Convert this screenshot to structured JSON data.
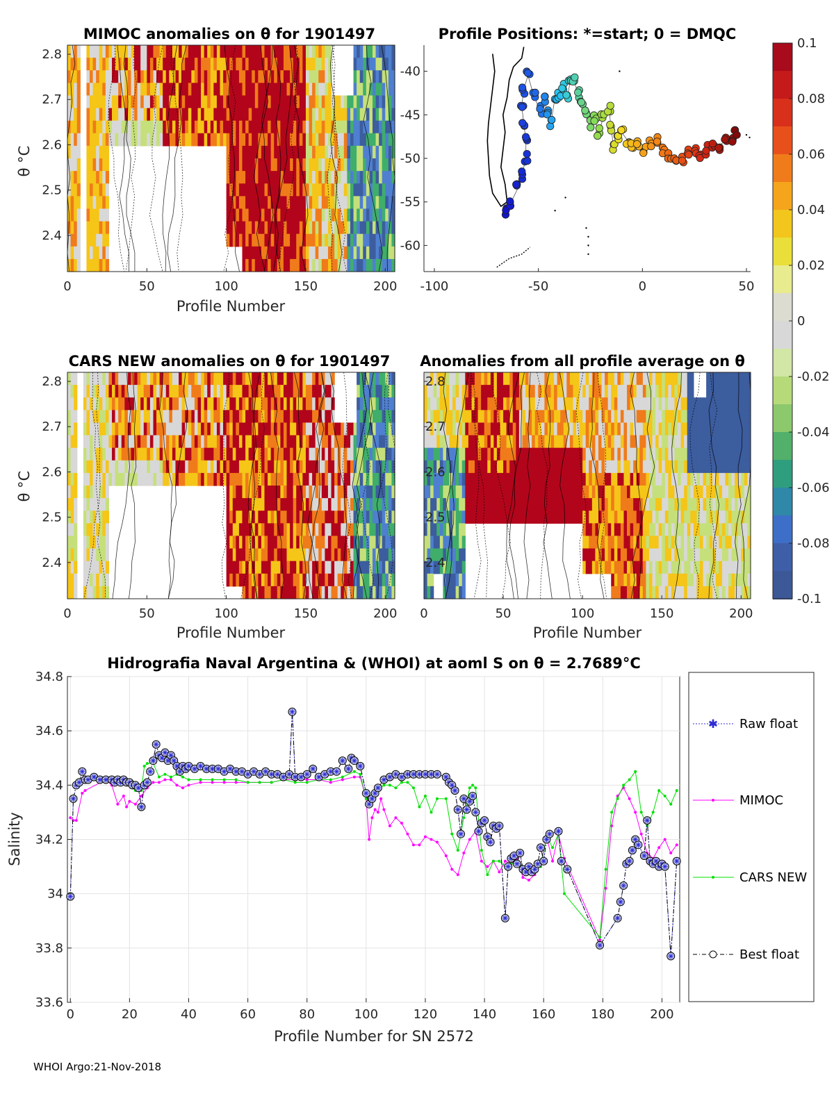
{
  "colors": {
    "red": "#b2051b",
    "orange": "#f07b1a",
    "yellow": "#f5c518",
    "grey": "#d8d8d8",
    "lightgreen": "#c5e07a",
    "green": "#3fae6b",
    "blue": "#3c5d9e",
    "midblue": "#4f7fd0"
  },
  "footer": "WHOI Argo:21-Nov-2018",
  "panels": {
    "mimoc": {
      "title": "MIMOC anomalies on θ  for 1901497",
      "xlabel": "Profile Number",
      "ylabel": "θ °C",
      "xticks": [
        "0",
        "50",
        "100",
        "150",
        "200"
      ],
      "yticks": [
        "2.4",
        "2.5",
        "2.6",
        "2.7",
        "2.8"
      ]
    },
    "positions": {
      "title": "Profile Positions: *=start; 0 = DMQC",
      "xticks": [
        "-100",
        "-50",
        "0",
        "50"
      ],
      "yticks": [
        "-40",
        "-45",
        "-50",
        "-55",
        "-60"
      ]
    },
    "cars": {
      "title": "CARS NEW anomalies on θ for 1901497",
      "xlabel": "Profile Number",
      "ylabel": "θ °C",
      "xticks": [
        "0",
        "50",
        "100",
        "150",
        "200"
      ],
      "yticks": [
        "2.4",
        "2.5",
        "2.6",
        "2.7",
        "2.8"
      ]
    },
    "allavg": {
      "title": "Anomalies from all profile average on θ",
      "xlabel": "Profile Number",
      "xticks": [
        "0",
        "50",
        "100",
        "150",
        "200"
      ],
      "yticks": [
        "2.4",
        "2.5",
        "2.6",
        "2.7",
        "2.8"
      ]
    }
  },
  "colorbar": {
    "ticks": [
      "0.1",
      "0.08",
      "0.06",
      "0.04",
      "0.02",
      "0",
      "-0.02",
      "-0.04",
      "-0.06",
      "-0.08",
      "-0.1"
    ]
  },
  "chart_data": [
    {
      "type": "heatmap",
      "title": "MIMOC anomalies on θ  for 1901497",
      "xlabel": "Profile Number",
      "ylabel": "θ °C",
      "xlim": [
        0,
        206
      ],
      "ylim": [
        2.32,
        2.82
      ],
      "x_segments": [
        [
          0,
          25,
          "yellow"
        ],
        [
          25,
          55,
          "orange"
        ],
        [
          55,
          100,
          "red"
        ],
        [
          100,
          140,
          "red"
        ],
        [
          140,
          160,
          "orange"
        ],
        [
          160,
          180,
          "lightgreen"
        ],
        [
          180,
          206,
          "blue"
        ]
      ],
      "empty_regions": [
        [
          25,
          100,
          2.32,
          2.6
        ],
        [
          8,
          12,
          2.32,
          2.82
        ],
        [
          168,
          180,
          2.72,
          2.82
        ]
      ]
    },
    {
      "type": "scatter",
      "title": "Profile Positions: *=start; 0 = DMQC",
      "xlim": [
        -105,
        52
      ],
      "ylim": [
        -63,
        -37
      ],
      "track": [
        [
          -66,
          -56.2
        ],
        [
          -63,
          -55
        ],
        [
          -60,
          -53.5
        ],
        [
          -58,
          -52
        ],
        [
          -56,
          -50
        ],
        [
          -56,
          -48
        ],
        [
          -57,
          -46
        ],
        [
          -58,
          -44
        ],
        [
          -57,
          -42
        ],
        [
          -55,
          -40.5
        ],
        [
          -52,
          -43
        ],
        [
          -49,
          -44.5
        ],
        [
          -47,
          -43
        ],
        [
          -46,
          -45
        ],
        [
          -44,
          -46
        ],
        [
          -42,
          -43
        ],
        [
          -40,
          -42.5
        ],
        [
          -38,
          -42
        ],
        [
          -36,
          -43
        ],
        [
          -35,
          -41.5
        ],
        [
          -33,
          -41
        ],
        [
          -31,
          -42.5
        ],
        [
          -29,
          -44
        ],
        [
          -27,
          -44.5
        ],
        [
          -25,
          -46
        ],
        [
          -23,
          -45.5
        ],
        [
          -21,
          -47
        ],
        [
          -19,
          -45.5
        ],
        [
          -16,
          -44.5
        ],
        [
          -15,
          -46.5
        ],
        [
          -14,
          -48.5
        ],
        [
          -12,
          -47.5
        ],
        [
          -10,
          -47
        ],
        [
          -7,
          -48
        ],
        [
          -5,
          -48.5
        ],
        [
          -2,
          -48.5
        ],
        [
          1,
          -49
        ],
        [
          4,
          -48.5
        ],
        [
          7,
          -48
        ],
        [
          10,
          -49
        ],
        [
          13,
          -50
        ],
        [
          16,
          -50.5
        ],
        [
          19,
          -50
        ],
        [
          22,
          -49.5
        ],
        [
          25,
          -49
        ],
        [
          28,
          -49.5
        ],
        [
          31,
          -49
        ],
        [
          34,
          -48.5
        ],
        [
          37,
          -48.5
        ],
        [
          40,
          -48
        ],
        [
          43,
          -47.5
        ],
        [
          45,
          -47
        ]
      ]
    },
    {
      "type": "heatmap",
      "title": "CARS NEW anomalies on θ for 1901497",
      "xlabel": "Profile Number",
      "ylabel": "θ °C",
      "xlim": [
        0,
        206
      ],
      "ylim": [
        2.32,
        2.82
      ]
    },
    {
      "type": "heatmap",
      "title": "Anomalies from all profile average on θ",
      "xlabel": "Profile Number",
      "xlim": [
        0,
        206
      ],
      "ylim": [
        2.32,
        2.82
      ]
    },
    {
      "type": "line",
      "title": "Hidrografia Naval Argentina & (WHOI) at aoml S on θ = 2.7689°C",
      "xlabel": "Profile Number for SN 2572",
      "ylabel": "Salinity",
      "xlim": [
        -1,
        206
      ],
      "ylim": [
        33.6,
        34.8
      ],
      "xticks": [
        0,
        20,
        40,
        60,
        80,
        100,
        120,
        140,
        160,
        180,
        200
      ],
      "yticks": [
        33.6,
        33.8,
        34,
        34.2,
        34.4,
        34.6,
        34.8
      ],
      "grid": true,
      "legend": [
        "Raw float",
        "MIMOC",
        "CARS NEW",
        "Best float"
      ],
      "series": [
        {
          "name": "Best float",
          "x": [
            0,
            1,
            2,
            3,
            4,
            5,
            6,
            8,
            10,
            12,
            14,
            15,
            16,
            17,
            18,
            19,
            20,
            21,
            22,
            23,
            24,
            25,
            26,
            27,
            28,
            29,
            30,
            31,
            32,
            33,
            34,
            35,
            36,
            37,
            38,
            39,
            40,
            42,
            44,
            46,
            48,
            50,
            52,
            54,
            56,
            58,
            60,
            62,
            64,
            66,
            68,
            70,
            72,
            74,
            75,
            76,
            78,
            80,
            82,
            84,
            86,
            88,
            90,
            92,
            94,
            95,
            96,
            98,
            100,
            101,
            102,
            103,
            104,
            106,
            108,
            110,
            112,
            114,
            116,
            118,
            120,
            122,
            124,
            127,
            128,
            129,
            130,
            131,
            132,
            133,
            134,
            135,
            136,
            137,
            138,
            139,
            140,
            141,
            142,
            143,
            144,
            145,
            147,
            148,
            149,
            150,
            151,
            152,
            153,
            154,
            155,
            156,
            157,
            158,
            159,
            160,
            161,
            162,
            165,
            166,
            168,
            179,
            185,
            186,
            187,
            188,
            189,
            190,
            191,
            192,
            194,
            195,
            196,
            197,
            198,
            199,
            200,
            201,
            203,
            205
          ],
          "values": [
            33.99,
            34.35,
            34.4,
            34.41,
            34.45,
            34.42,
            34.42,
            34.43,
            34.42,
            34.42,
            34.42,
            34.41,
            34.42,
            34.41,
            34.42,
            34.41,
            34.41,
            34.4,
            34.4,
            34.39,
            34.32,
            34.4,
            34.41,
            34.45,
            34.49,
            34.55,
            34.51,
            34.5,
            34.52,
            34.49,
            34.51,
            34.49,
            34.47,
            34.45,
            34.47,
            34.46,
            34.47,
            34.46,
            34.47,
            34.46,
            34.46,
            34.46,
            34.45,
            34.46,
            34.45,
            34.45,
            34.44,
            34.45,
            34.44,
            34.45,
            34.44,
            34.44,
            34.43,
            34.44,
            34.67,
            34.43,
            34.43,
            34.44,
            34.46,
            34.43,
            34.44,
            34.45,
            34.45,
            34.49,
            34.46,
            34.5,
            34.49,
            34.47,
            34.37,
            34.33,
            34.35,
            34.37,
            34.39,
            34.42,
            34.43,
            34.44,
            34.43,
            34.44,
            34.44,
            34.44,
            34.44,
            34.44,
            34.44,
            34.43,
            34.41,
            34.4,
            34.38,
            34.31,
            34.22,
            34.35,
            34.31,
            34.34,
            34.36,
            34.3,
            34.23,
            34.26,
            34.27,
            34.21,
            34.19,
            34.25,
            34.24,
            34.25,
            33.91,
            34.1,
            34.13,
            34.14,
            34.11,
            34.15,
            34.09,
            34.08,
            34.1,
            34.08,
            34.09,
            34.11,
            34.17,
            34.12,
            34.2,
            34.22,
            34.23,
            34.12,
            34.09,
            33.81,
            33.91,
            33.97,
            34.03,
            34.11,
            34.12,
            34.16,
            34.2,
            34.18,
            34.14,
            34.27,
            34.12,
            34.11,
            34.12,
            34.1,
            34.11,
            34.1,
            33.77,
            34.12
          ]
        },
        {
          "name": "MIMOC",
          "x": [
            0,
            1,
            2,
            4,
            5,
            12,
            14,
            16,
            18,
            19,
            20,
            22,
            24,
            26,
            28,
            30,
            32,
            34,
            36,
            38,
            40,
            44,
            48,
            52,
            56,
            60,
            64,
            68,
            72,
            76,
            80,
            84,
            88,
            92,
            96,
            98,
            100,
            101,
            102,
            103,
            104,
            105,
            106,
            108,
            110,
            112,
            114,
            116,
            118,
            120,
            122,
            124,
            127,
            129,
            131,
            133,
            135,
            137,
            139,
            141,
            143,
            145,
            147,
            149,
            151,
            153,
            155,
            157,
            159,
            161,
            163,
            165,
            167,
            179,
            181,
            183,
            185,
            187,
            189,
            191,
            193,
            195,
            197,
            199,
            201,
            203,
            205
          ],
          "values": [
            34.28,
            34.27,
            34.27,
            34.37,
            34.38,
            34.42,
            34.4,
            34.33,
            34.36,
            34.32,
            34.34,
            34.33,
            34.36,
            34.39,
            34.41,
            34.41,
            34.42,
            34.42,
            34.4,
            34.39,
            34.4,
            34.41,
            34.41,
            34.41,
            34.41,
            34.41,
            34.41,
            34.41,
            34.42,
            34.42,
            34.42,
            34.42,
            34.41,
            34.42,
            34.43,
            34.43,
            34.35,
            34.2,
            34.28,
            34.31,
            34.3,
            34.35,
            34.31,
            34.25,
            34.28,
            34.26,
            34.22,
            34.18,
            34.18,
            34.21,
            34.2,
            34.19,
            34.14,
            34.09,
            34.07,
            34.15,
            34.2,
            34.23,
            34.12,
            34.1,
            34.12,
            34.08,
            34.12,
            34.11,
            34.13,
            34.06,
            34.05,
            34.07,
            34.11,
            34.21,
            34.12,
            34.22,
            34.13,
            33.83,
            34.02,
            34.25,
            34.36,
            34.39,
            34.35,
            34.3,
            34.22,
            34.15,
            34.13,
            34.17,
            34.2,
            34.15,
            34.18
          ]
        },
        {
          "name": "CARS NEW",
          "x": [
            12,
            14,
            16,
            18,
            20,
            22,
            24,
            25,
            26,
            28,
            30,
            32,
            34,
            36,
            38,
            40,
            44,
            48,
            52,
            56,
            60,
            64,
            68,
            72,
            76,
            80,
            84,
            88,
            92,
            96,
            98,
            100,
            101,
            102,
            104,
            106,
            108,
            110,
            112,
            114,
            116,
            118,
            120,
            122,
            124,
            127,
            129,
            131,
            133,
            135,
            136,
            137,
            139,
            141,
            143,
            145,
            147,
            149,
            151,
            153,
            155,
            157,
            159,
            161,
            163,
            165,
            167,
            179,
            181,
            183,
            185,
            187,
            189,
            191,
            193,
            195,
            197,
            199,
            201,
            203,
            205
          ],
          "values": [
            34.43,
            34.43,
            34.42,
            34.41,
            34.4,
            34.38,
            34.38,
            34.47,
            34.48,
            34.48,
            34.43,
            34.44,
            34.43,
            34.44,
            34.43,
            34.42,
            34.42,
            34.42,
            34.42,
            34.42,
            34.41,
            34.41,
            34.41,
            34.42,
            34.41,
            34.41,
            34.42,
            34.42,
            34.43,
            34.45,
            34.44,
            34.35,
            34.33,
            34.36,
            34.38,
            34.4,
            34.4,
            34.39,
            34.41,
            34.41,
            34.39,
            34.32,
            34.36,
            34.3,
            34.35,
            34.35,
            34.22,
            34.16,
            34.28,
            34.39,
            34.4,
            34.39,
            34.16,
            34.07,
            34.12,
            34.12,
            34.1,
            34.11,
            34.12,
            34.1,
            34.08,
            34.09,
            34.1,
            34.21,
            34.17,
            34.22,
            34.0,
            33.84,
            34.09,
            34.3,
            34.35,
            34.4,
            34.42,
            34.45,
            34.3,
            34.25,
            34.3,
            34.38,
            34.36,
            34.33,
            34.38
          ]
        }
      ]
    }
  ]
}
